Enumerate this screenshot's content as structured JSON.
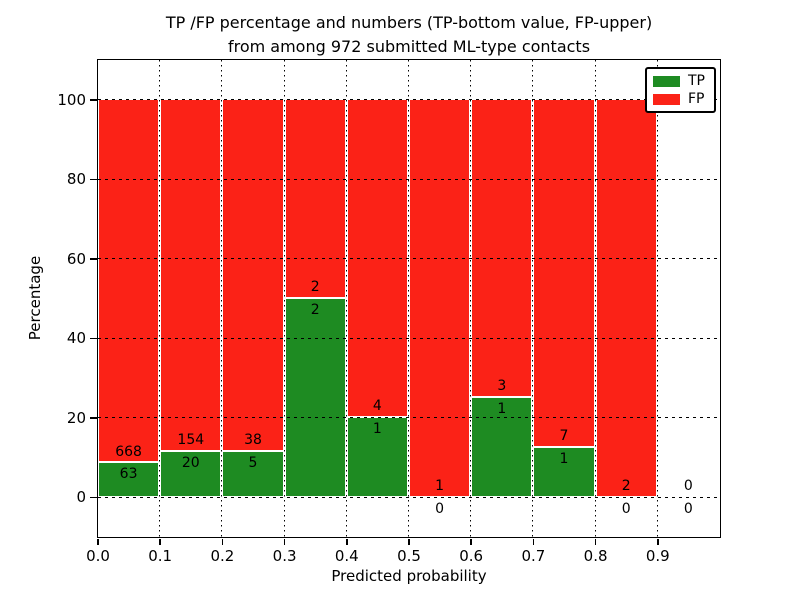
{
  "chart_data": {
    "type": "bar",
    "stacked": true,
    "title_lines": [
      "TP /FP percentage and numbers (TP-bottom value, FP-upper)",
      "from among 972 submitted ML-type contacts"
    ],
    "total_contacts": 972,
    "xlabel": "Predicted probability",
    "ylabel": "Percentage",
    "x_tick_labels": [
      "0.0",
      "0.1",
      "0.2",
      "0.3",
      "0.4",
      "0.5",
      "0.6",
      "0.7",
      "0.8",
      "0.9"
    ],
    "y_tick_labels": [
      "0",
      "20",
      "40",
      "60",
      "80",
      "100"
    ],
    "y_ticks": [
      0,
      20,
      40,
      60,
      80,
      100
    ],
    "ylim": [
      -10,
      110
    ],
    "xlim": [
      0,
      1.0
    ],
    "bin_width": 0.1,
    "grid": true,
    "legend_position": "upper right",
    "series": [
      {
        "name": "TP",
        "color": "#1e8b22",
        "counts": [
          63,
          20,
          5,
          2,
          1,
          0,
          1,
          1,
          0,
          0
        ]
      },
      {
        "name": "FP",
        "color": "#fb2217",
        "counts": [
          668,
          154,
          38,
          2,
          4,
          1,
          3,
          7,
          2,
          0
        ]
      }
    ],
    "tp_percent_of_bin": [
      8.62,
      11.49,
      11.63,
      50.0,
      20.0,
      0.0,
      25.0,
      12.5,
      0.0,
      null
    ],
    "fp_bar_top_percent": 100,
    "axis_color": "#000000",
    "background_color": "#ffffff"
  }
}
